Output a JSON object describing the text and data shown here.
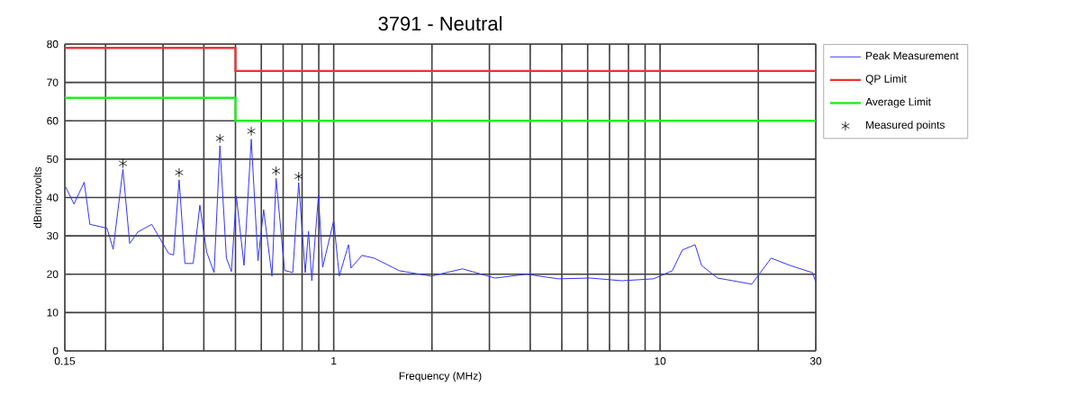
{
  "chart_data": {
    "type": "line",
    "title": "3791 - Neutral",
    "xlabel": "Frequency (MHz)",
    "ylabel": "dBmicrovolts",
    "log": "x",
    "grid": true,
    "legend": "top right",
    "marker": "none",
    "xlim": [
      0.15,
      30
    ],
    "ylim": [
      0,
      80
    ],
    "xticks": [
      0.15,
      {
        "value": 0.2,
        "label": null
      },
      {
        "value": 0.3,
        "label": null
      },
      {
        "value": 0.4,
        "label": null
      },
      {
        "value": 0.5,
        "label": null
      },
      {
        "value": 0.6,
        "label": null
      },
      {
        "value": 0.7,
        "label": null
      },
      {
        "value": 0.8,
        "label": null
      },
      {
        "value": 0.9,
        "label": null
      },
      1,
      {
        "value": 2,
        "label": null
      },
      {
        "value": 3,
        "label": null
      },
      {
        "value": 4,
        "label": null
      },
      {
        "value": 5,
        "label": null
      },
      {
        "value": 6,
        "label": null
      },
      {
        "value": 7,
        "label": null
      },
      {
        "value": 8,
        "label": null
      },
      {
        "value": 9,
        "label": null
      },
      10,
      {
        "value": 20,
        "label": null
      },
      30
    ],
    "yticks": [
      0,
      10,
      20,
      30,
      40,
      50,
      60,
      70,
      80
    ],
    "series": [
      {
        "name": "Peak Measurement",
        "color": "#3333ff",
        "x": [
          0.151,
          0.16,
          0.172,
          0.179,
          0.202,
          0.211,
          0.226,
          0.237,
          0.251,
          0.277,
          0.312,
          0.323,
          0.336,
          0.35,
          0.371,
          0.389,
          0.408,
          0.43,
          0.448,
          0.469,
          0.486,
          0.503,
          0.531,
          0.559,
          0.586,
          0.61,
          0.647,
          0.666,
          0.707,
          0.749,
          0.781,
          0.818,
          0.837,
          0.857,
          0.898,
          0.925,
          1.0,
          1.04,
          1.11,
          1.13,
          1.22,
          1.33,
          1.59,
          1.99,
          2.48,
          3.12,
          3.9,
          4.87,
          6.11,
          7.64,
          9.54,
          10.9,
          11.7,
          12.8,
          13.4,
          15.0,
          16.7,
          19.1,
          21.9,
          25.0,
          29.3,
          30
        ],
        "values": [
          42.7,
          38.3,
          44,
          33,
          32,
          26.5,
          47.4,
          28,
          31,
          33,
          25.4,
          25,
          44.6,
          22.8,
          22.8,
          38,
          25.8,
          20.4,
          53.5,
          24.2,
          20.7,
          40.4,
          22.3,
          55.2,
          23.5,
          36.8,
          19.5,
          45,
          21,
          20.4,
          43.9,
          20.4,
          31.2,
          18.3,
          40.6,
          21.8,
          34,
          19.5,
          27.7,
          21.6,
          24.9,
          24.2,
          20.9,
          19.5,
          21.4,
          19,
          20,
          18.8,
          19,
          18.3,
          18.8,
          20.9,
          26.3,
          27.7,
          22.3,
          19,
          18.3,
          17.4,
          24.2,
          22.3,
          20.4,
          18
        ]
      },
      {
        "name": "QP Limit",
        "type": "step",
        "color": "#ee3333",
        "x": [
          0.15,
          0.5,
          30
        ],
        "values": [
          79,
          73,
          73
        ]
      },
      {
        "name": "Average Limit",
        "type": "step",
        "color": "#22ee22",
        "x": [
          0.15,
          0.5,
          30
        ],
        "values": [
          66,
          60,
          60
        ]
      },
      {
        "name": "Measured points",
        "type": "scatter",
        "marker": "cross",
        "color": "#000000",
        "x": [
          0.226,
          0.336,
          0.448,
          0.559,
          0.666,
          0.781
        ],
        "values": [
          48.9,
          46.5,
          55.4,
          57.3,
          46.9,
          45.5
        ]
      }
    ]
  }
}
